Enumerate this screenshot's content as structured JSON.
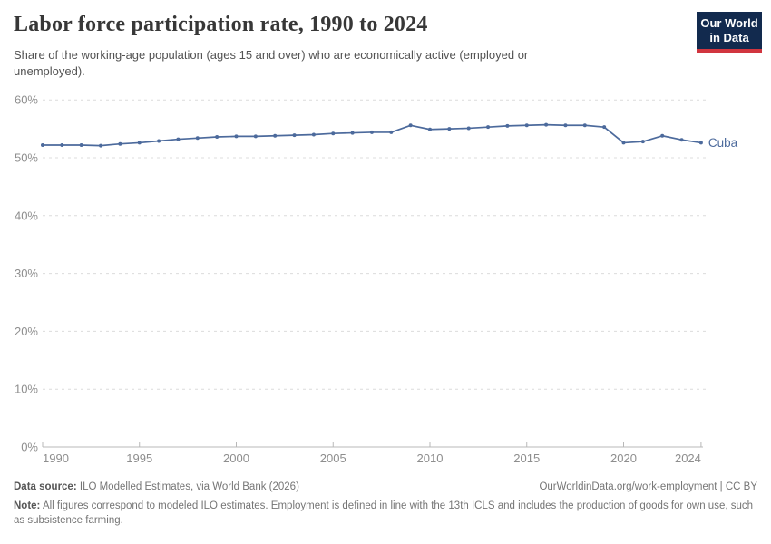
{
  "header": {
    "title": "Labor force participation rate, 1990 to 2024",
    "subtitle": "Share of the working-age population (ages 15 and over) who are economically active (employed or unemployed).",
    "logo_line1": "Our World",
    "logo_line2": "in Data"
  },
  "chart_data": {
    "type": "line",
    "title": "Labor force participation rate, 1990 to 2024",
    "xlabel": "",
    "ylabel": "",
    "xlim": [
      1990,
      2024
    ],
    "ylim": [
      0,
      60
    ],
    "grid": "horizontal-dashed",
    "legend_position": "end-of-line",
    "x_ticks": [
      1990,
      1995,
      2000,
      2005,
      2010,
      2015,
      2020,
      2024
    ],
    "y_ticks": [
      0,
      10,
      20,
      30,
      40,
      50,
      60
    ],
    "y_tick_suffix": "%",
    "series": [
      {
        "name": "Cuba",
        "color": "#4c6a9c",
        "x": [
          1990,
          1991,
          1992,
          1993,
          1994,
          1995,
          1996,
          1997,
          1998,
          1999,
          2000,
          2001,
          2002,
          2003,
          2004,
          2005,
          2006,
          2007,
          2008,
          2009,
          2010,
          2011,
          2012,
          2013,
          2014,
          2015,
          2016,
          2017,
          2018,
          2019,
          2020,
          2021,
          2022,
          2023,
          2024
        ],
        "values": [
          52.2,
          52.2,
          52.2,
          52.1,
          52.4,
          52.6,
          52.9,
          53.2,
          53.4,
          53.6,
          53.7,
          53.7,
          53.8,
          53.9,
          54.0,
          54.2,
          54.3,
          54.4,
          54.4,
          55.6,
          54.9,
          55.0,
          55.1,
          55.3,
          55.5,
          55.6,
          55.7,
          55.6,
          55.6,
          55.3,
          52.6,
          52.8,
          53.8,
          53.1,
          52.6
        ]
      }
    ]
  },
  "footer": {
    "data_source_label": "Data source:",
    "data_source": "ILO Modelled Estimates, via World Bank (2026)",
    "attribution": "OurWorldinData.org/work-employment | CC BY",
    "note_label": "Note:",
    "note": "All figures correspond to modeled ILO estimates. Employment is defined in line with the 13th ICLS and includes the production of goods for own use, such as subsistence farming."
  },
  "colors": {
    "series_blue": "#4c6a9c",
    "gridline": "#dcdcdc",
    "axis": "#b8b8b8",
    "tick_label": "#8e8e8e",
    "logo_navy": "#122a4e",
    "logo_red": "#d1353f"
  }
}
